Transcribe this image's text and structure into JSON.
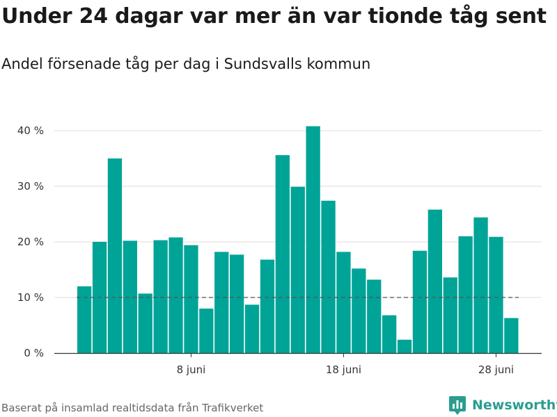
{
  "title": "Under 24 dagar var mer än var tionde tåg sent",
  "subtitle": "Andel försenade tåg per dag i Sundsvalls kommun",
  "source": "Baserat på insamlad realtidsdata från Trafikverket",
  "brand": {
    "name": "Newsworthy",
    "icon": "newsworthy-logo-icon",
    "color": "#2a9d8f"
  },
  "colors": {
    "bar": "#00a497",
    "reference_line": "#555555",
    "grid": "#dddddd",
    "axis": "#333333"
  },
  "chart_data": {
    "type": "bar",
    "x": [
      "1 juni",
      "2 juni",
      "3 juni",
      "4 juni",
      "5 juni",
      "6 juni",
      "7 juni",
      "8 juni",
      "9 juni",
      "10 juni",
      "11 juni",
      "12 juni",
      "13 juni",
      "14 juni",
      "15 juni",
      "16 juni",
      "17 juni",
      "18 juni",
      "19 juni",
      "20 juni",
      "21 juni",
      "22 juni",
      "23 juni",
      "24 juni",
      "25 juni",
      "26 juni",
      "27 juni",
      "28 juni",
      "29 juni",
      "30 juni"
    ],
    "values": [
      12,
      20,
      35,
      20.2,
      10.7,
      20.3,
      20.8,
      19.4,
      8,
      18.2,
      17.7,
      8.7,
      16.8,
      35.6,
      29.9,
      40.8,
      27.4,
      18.2,
      15.2,
      13.2,
      6.8,
      2.4,
      18.4,
      25.8,
      13.6,
      21,
      24.4,
      20.9,
      6.3,
      null
    ],
    "ylim": [
      0,
      40
    ],
    "yticks": [
      0,
      10,
      20,
      30,
      40
    ],
    "ytick_labels": [
      "0 %",
      "10 %",
      "20 %",
      "30 %",
      "40 %"
    ],
    "xtick_labels": [
      "8 juni",
      "18 juni",
      "28 juni"
    ],
    "xtick_positions": [
      "8 juni",
      "18 juni",
      "28 juni"
    ],
    "reference_line": {
      "value": 10,
      "style": "dashed"
    },
    "grid": true,
    "xlabel": "",
    "ylabel": ""
  }
}
